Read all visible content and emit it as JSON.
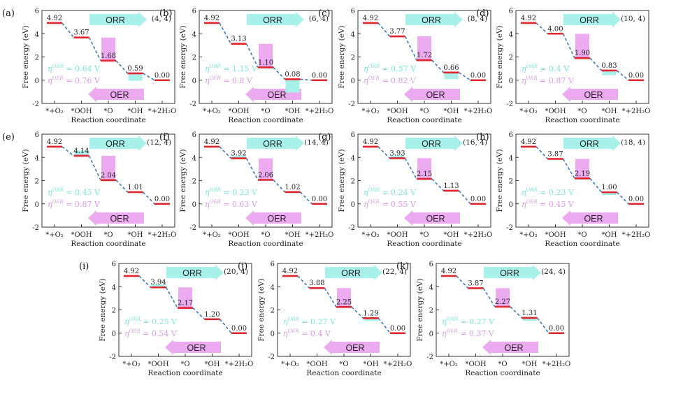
{
  "colors": {
    "level": "#e0252b",
    "dash": "#3f78b4",
    "orr": "#a8f0ea",
    "oer": "#ecaaf0",
    "orr_text": "#7fe3da",
    "oer_text": "#d79be3",
    "axis": "#333333"
  },
  "labels": {
    "ylabel": "Free energy (eV)",
    "xlabel": "Reaction coordinate",
    "orr": "ORR",
    "oer": "OER",
    "eta": "η",
    "orr_sup": "ORR",
    "oer_sup": "OER",
    "xticks": [
      "*+O₂",
      "*OOH",
      "*O",
      "*OH",
      "*+2H₂O"
    ],
    "yticks": [
      "-2",
      "0",
      "2",
      "4",
      "6"
    ]
  },
  "chart_data": [
    {
      "type": "line",
      "panel": "(a)",
      "tag": "(4, 4)",
      "y": [
        4.92,
        3.67,
        1.68,
        0.59,
        0.0
      ],
      "labels": [
        "4.92",
        "3.67",
        "1.68",
        "0.59",
        "0.00"
      ],
      "eta_orr": "0.64 V",
      "eta_oer": "0.76 V",
      "ylim": [
        -2,
        6
      ],
      "orr_bar": 3,
      "oer_bar": 2
    },
    {
      "type": "line",
      "panel": "(b)",
      "tag": "(6, 4)",
      "y": [
        4.92,
        3.13,
        1.1,
        0.08,
        0.0
      ],
      "labels": [
        "4.92",
        "3.13",
        "1.10",
        "0.08",
        "0.00"
      ],
      "eta_orr": "1.15 V",
      "eta_oer": "0.8 V",
      "ylim": [
        -2,
        6
      ],
      "orr_bar": 3,
      "oer_bar": 2
    },
    {
      "type": "line",
      "panel": "(c)",
      "tag": "(8, 4)",
      "y": [
        4.92,
        3.77,
        1.72,
        0.66,
        0.0
      ],
      "labels": [
        "4.92",
        "3.77",
        "1.72",
        "0.66",
        "0.00"
      ],
      "eta_orr": "0.57 V",
      "eta_oer": "0.82 V",
      "ylim": [
        -2,
        6
      ],
      "orr_bar": 3,
      "oer_bar": 2
    },
    {
      "type": "line",
      "panel": "(d)",
      "tag": "(10, 4)",
      "y": [
        4.92,
        4.0,
        1.9,
        0.83,
        0.0
      ],
      "labels": [
        "4.92",
        "4.00",
        "1.90",
        "0.83",
        "0.00"
      ],
      "eta_orr": "0.4 V",
      "eta_oer": "0.87 V",
      "ylim": [
        -2,
        6
      ],
      "orr_bar": 3,
      "oer_bar": 2
    },
    {
      "type": "line",
      "panel": "(e)",
      "tag": "(12, 4)",
      "y": [
        4.92,
        4.14,
        2.04,
        1.01,
        0.0
      ],
      "labels": [
        "4.92",
        "4.14",
        "2.04",
        "1.01",
        "0.00"
      ],
      "eta_orr": "0.45 V",
      "eta_oer": "0.87 V",
      "ylim": [
        -2,
        6
      ],
      "orr_bar": 1,
      "oer_bar": 2
    },
    {
      "type": "line",
      "panel": "(f)",
      "tag": "(14, 4)",
      "y": [
        4.92,
        3.92,
        2.06,
        1.02,
        0.0
      ],
      "labels": [
        "4.92",
        "3.92",
        "2.06",
        "1.02",
        "0.00"
      ],
      "eta_orr": "0.23 V",
      "eta_oer": "0.63 V",
      "ylim": [
        -2,
        6
      ],
      "orr_bar": 1,
      "oer_bar": 2
    },
    {
      "type": "line",
      "panel": "(g)",
      "tag": "(16, 4)",
      "y": [
        4.92,
        3.93,
        2.15,
        1.13,
        0.0
      ],
      "labels": [
        "4.92",
        "3.93",
        "2.15",
        "1.13",
        "0.00"
      ],
      "eta_orr": "0.24 V",
      "eta_oer": "0.55 V",
      "ylim": [
        -2,
        6
      ],
      "orr_bar": 1,
      "oer_bar": 2
    },
    {
      "type": "line",
      "panel": "(h)",
      "tag": "(18, 4)",
      "y": [
        4.92,
        3.87,
        2.19,
        1.0,
        0.0
      ],
      "labels": [
        "4.92",
        "3.87",
        "2.19",
        "1.00",
        "0.00"
      ],
      "eta_orr": "0.23 V",
      "eta_oer": "0.45 V",
      "ylim": [
        -2,
        6
      ],
      "orr_bar": 3,
      "oer_bar": 2
    },
    {
      "type": "line",
      "panel": "(i)",
      "tag": "(20, 4)",
      "y": [
        4.92,
        3.94,
        2.17,
        1.2,
        0.0
      ],
      "labels": [
        "4.92",
        "3.94",
        "2.17",
        "1.20",
        "0.00"
      ],
      "eta_orr": "0.25 V",
      "eta_oer": "0.54 V",
      "ylim": [
        -2,
        6
      ],
      "orr_bar": 1,
      "oer_bar": 2
    },
    {
      "type": "line",
      "panel": "(j)",
      "tag": "(22, 4)",
      "y": [
        4.92,
        3.88,
        2.25,
        1.29,
        0.0
      ],
      "labels": [
        "4.92",
        "3.88",
        "2.25",
        "1.29",
        "0.00"
      ],
      "eta_orr": "0.27 V",
      "eta_oer": "0.4 V",
      "ylim": [
        -2,
        6
      ],
      "orr_bar": 3,
      "oer_bar": 2
    },
    {
      "type": "line",
      "panel": "(k)",
      "tag": "(24, 4)",
      "y": [
        4.92,
        3.87,
        2.27,
        1.31,
        0.0
      ],
      "labels": [
        "4.92",
        "3.87",
        "2.27",
        "1.31",
        "0.00"
      ],
      "eta_orr": "0.27 V",
      "eta_oer": "0.37 V",
      "ylim": [
        -2,
        6
      ],
      "orr_bar": 3,
      "oer_bar": 2
    }
  ]
}
